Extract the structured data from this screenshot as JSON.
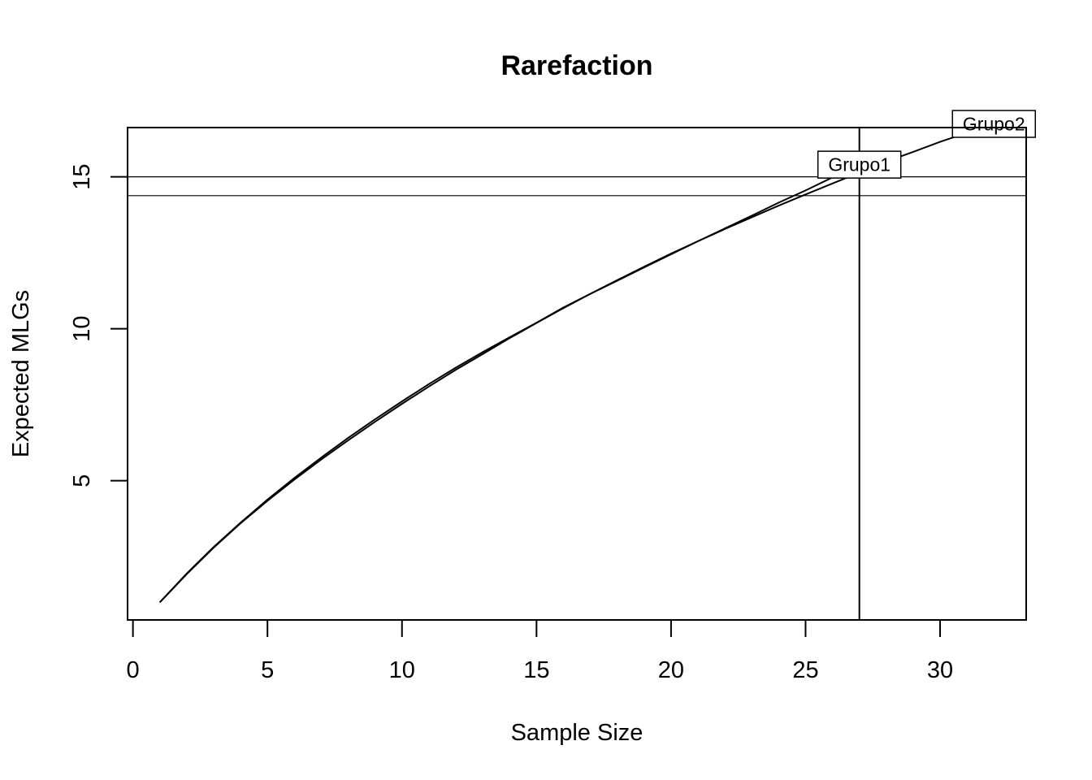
{
  "chart_data": {
    "type": "line",
    "title": "Rarefaction",
    "xlabel": "Sample Size",
    "ylabel": "Expected MLGs",
    "xlim": [
      -0.2,
      33.2
    ],
    "ylim": [
      0.42,
      16.62
    ],
    "xticks": [
      0,
      5,
      10,
      15,
      20,
      25,
      30
    ],
    "yticks": [
      5,
      10,
      15
    ],
    "grid": false,
    "legend": "none",
    "colors": {
      "line": "#000000",
      "background": "#ffffff",
      "label_fill": "#ffffff"
    },
    "series": [
      {
        "name": "Grupo1",
        "x": [
          1,
          2,
          3,
          4,
          5,
          6,
          7,
          8,
          9,
          10,
          11,
          12,
          13,
          14,
          15,
          16,
          17,
          18,
          19,
          20,
          21,
          22,
          23,
          24,
          25,
          26,
          27
        ],
        "values": [
          1.0,
          1.95,
          2.82,
          3.62,
          4.38,
          5.09,
          5.76,
          6.41,
          7.02,
          7.61,
          8.18,
          8.72,
          9.23,
          9.72,
          10.2,
          10.7,
          11.15,
          11.58,
          12.02,
          12.45,
          12.88,
          13.3,
          13.72,
          14.15,
          14.55,
          14.98,
          15.4
        ]
      },
      {
        "name": "Grupo2",
        "x": [
          1,
          2,
          3,
          4,
          5,
          6,
          7,
          8,
          9,
          10,
          11,
          12,
          13,
          14,
          15,
          16,
          17,
          18,
          19,
          20,
          21,
          22,
          23,
          24,
          25,
          26,
          27,
          28,
          29,
          30,
          31,
          32
        ],
        "values": [
          1.0,
          1.93,
          2.8,
          3.6,
          4.34,
          5.04,
          5.7,
          6.33,
          6.94,
          7.53,
          8.1,
          8.65,
          9.17,
          9.69,
          10.19,
          10.68,
          11.15,
          11.6,
          12.04,
          12.47,
          12.88,
          13.28,
          13.67,
          14.05,
          14.42,
          14.78,
          15.14,
          15.5,
          15.82,
          16.15,
          16.45,
          16.74
        ]
      }
    ],
    "reference_lines": {
      "vertical_x": 27,
      "horizontal_y": [
        15.0,
        14.38
      ]
    }
  }
}
